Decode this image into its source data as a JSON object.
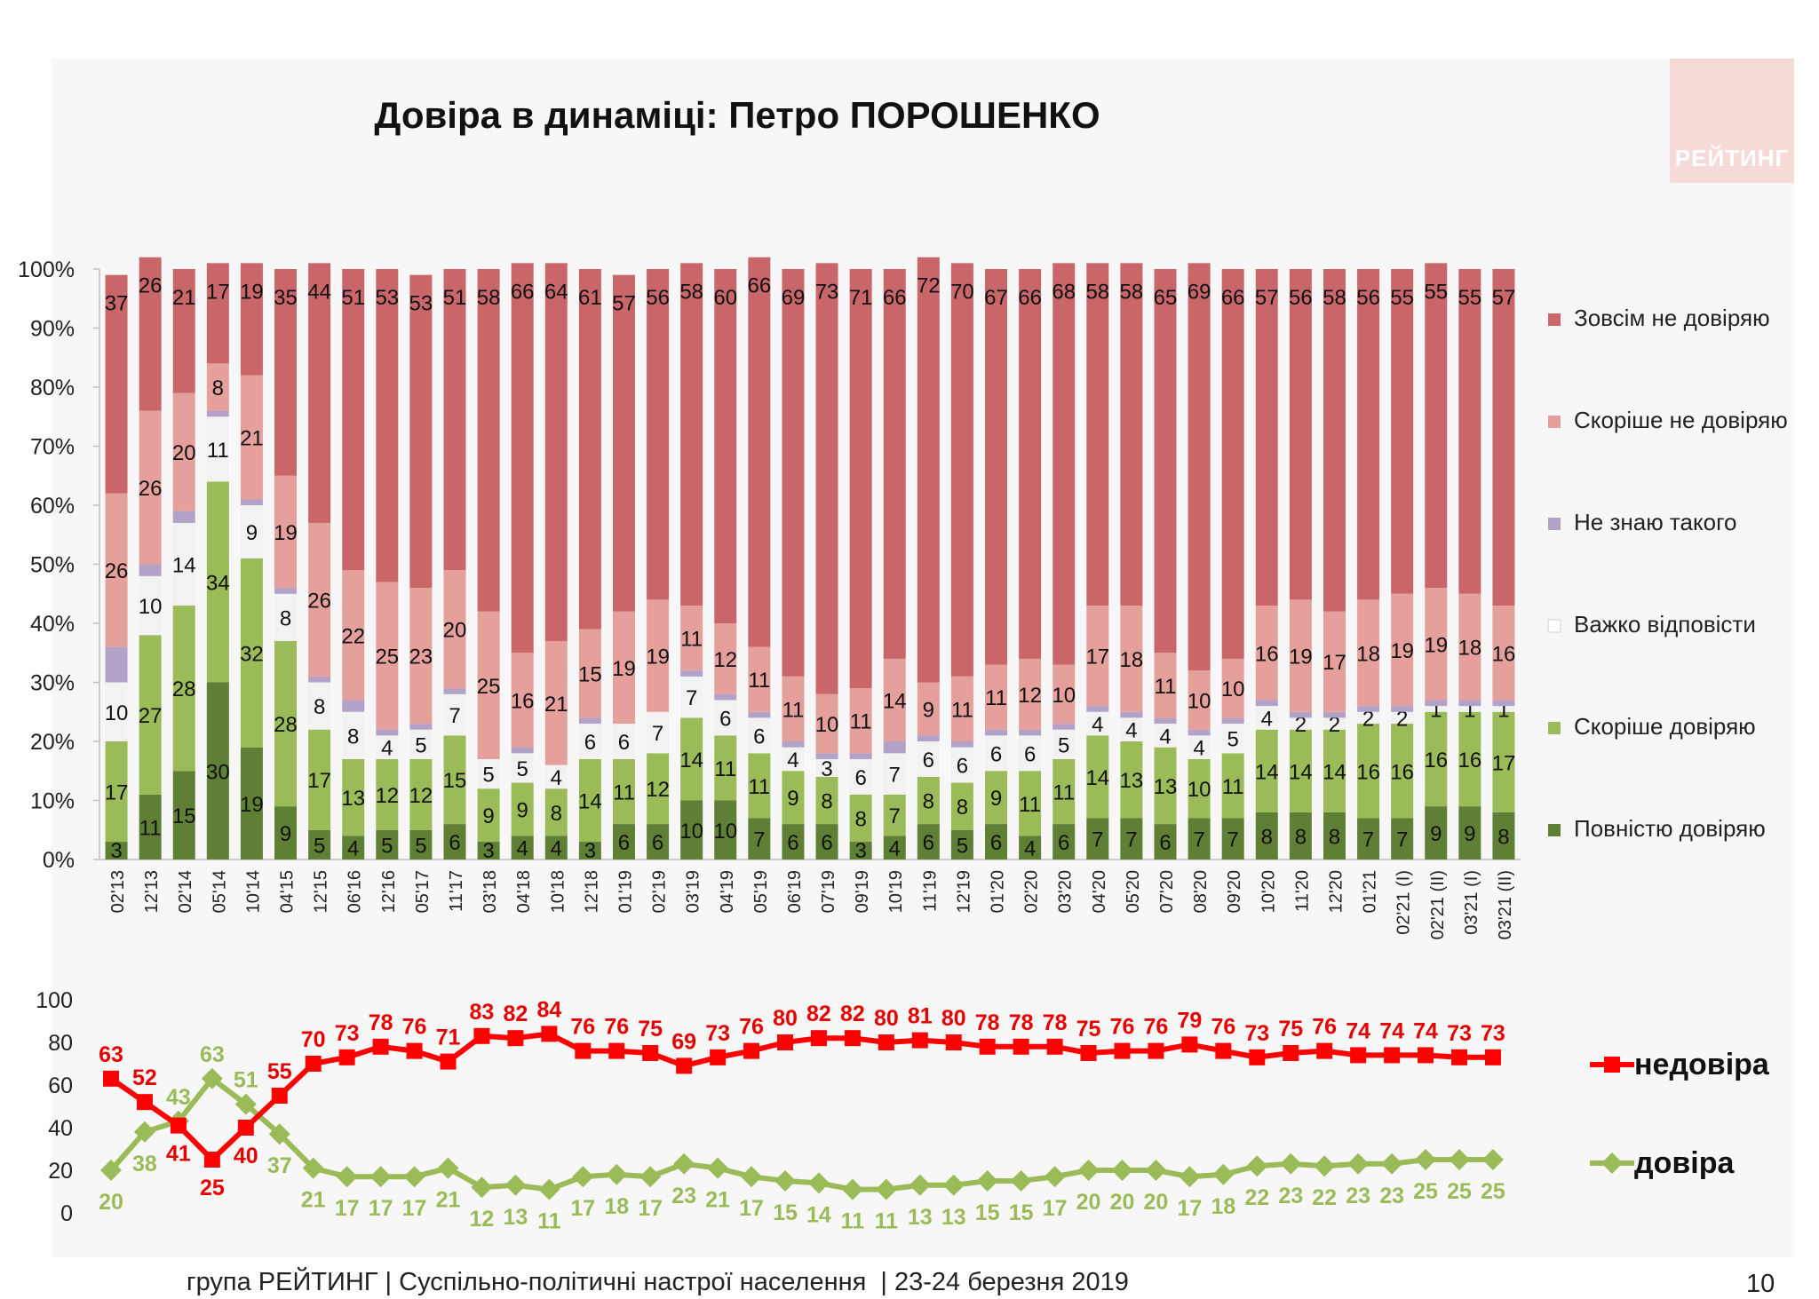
{
  "slide": {
    "title": "Довіра в динаміці: Петро ПОРОШЕНКО",
    "logo_text": "РЕЙТИНГ",
    "footer": "група РЕЙТИНГ | Суспільно-політичні настрої населення  | 23-24 березня 2019",
    "page_number": "10"
  },
  "chart_data": [
    {
      "type": "bar",
      "stacked": true,
      "percent": true,
      "y_ticks": [
        "0%",
        "10%",
        "20%",
        "30%",
        "40%",
        "50%",
        "60%",
        "70%",
        "80%",
        "90%",
        "100%"
      ],
      "ylim": [
        0,
        100
      ],
      "categories": [
        "02'13",
        "12'13",
        "02'14",
        "05'14",
        "10'14",
        "04'15",
        "12'15",
        "06'16",
        "12'16",
        "05'17",
        "11'17",
        "03'18",
        "04'18",
        "10'18",
        "12'18",
        "01'19",
        "02'19",
        "03'19",
        "04'19",
        "05'19",
        "06'19",
        "07'19",
        "09'19",
        "10'19",
        "11'19",
        "12'19",
        "01'20",
        "02'20",
        "03'20",
        "04'20",
        "05'20",
        "07'20",
        "08'20",
        "09'20",
        "10'20",
        "11'20",
        "12'20",
        "01'21",
        "02'21 (I)",
        "02'21 (II)",
        "03'21 (I)",
        "03'21 (II)"
      ],
      "series": [
        {
          "name": "Повністю довіряю",
          "color": "#5e7f34",
          "values": [
            3,
            11,
            15,
            30,
            19,
            9,
            5,
            4,
            5,
            5,
            6,
            3,
            4,
            4,
            3,
            6,
            6,
            10,
            10,
            7,
            6,
            6,
            3,
            4,
            6,
            5,
            6,
            4,
            6,
            7,
            7,
            6,
            7,
            7,
            8,
            8,
            8,
            7,
            7,
            9,
            9,
            8
          ]
        },
        {
          "name": "Скоріше довіряю",
          "color": "#9bbb59",
          "values": [
            17,
            27,
            28,
            34,
            32,
            28,
            17,
            13,
            12,
            12,
            15,
            9,
            9,
            8,
            14,
            11,
            12,
            14,
            11,
            11,
            9,
            8,
            8,
            7,
            8,
            8,
            9,
            11,
            11,
            14,
            13,
            13,
            10,
            11,
            14,
            14,
            14,
            16,
            16,
            16,
            16,
            17
          ]
        },
        {
          "name": "Важко відповісти",
          "color": "#f2f2f2",
          "values": [
            10,
            10,
            14,
            11,
            9,
            8,
            8,
            8,
            4,
            5,
            7,
            5,
            5,
            4,
            6,
            6,
            7,
            7,
            6,
            6,
            4,
            3,
            6,
            7,
            6,
            6,
            6,
            6,
            5,
            4,
            4,
            4,
            4,
            5,
            4,
            2,
            2,
            2,
            2,
            1,
            1,
            1
          ]
        },
        {
          "name": "Не знаю такого",
          "color": "#b3a2c7",
          "values": [
            6,
            2,
            2,
            1,
            1,
            1,
            1,
            2,
            1,
            1,
            1,
            0,
            1,
            0,
            1,
            0,
            0,
            1,
            1,
            1,
            1,
            1,
            1,
            2,
            1,
            1,
            1,
            1,
            1,
            1,
            1,
            1,
            1,
            1,
            1,
            1,
            1,
            1,
            1,
            1,
            1,
            1
          ]
        },
        {
          "name": "Скоріше не довіряю",
          "color": "#e6a09c",
          "values": [
            26,
            26,
            20,
            8,
            21,
            19,
            26,
            22,
            25,
            23,
            20,
            25,
            16,
            21,
            15,
            19,
            19,
            11,
            12,
            11,
            11,
            10,
            11,
            14,
            9,
            11,
            11,
            12,
            10,
            17,
            18,
            11,
            10,
            10,
            16,
            19,
            17,
            18,
            19,
            19,
            18,
            16
          ]
        },
        {
          "name": "Зовсім не довіряю",
          "color": "#c9666a",
          "values": [
            37,
            26,
            21,
            17,
            19,
            35,
            44,
            51,
            53,
            53,
            51,
            58,
            66,
            64,
            61,
            57,
            56,
            58,
            60,
            66,
            69,
            73,
            71,
            66,
            72,
            70,
            67,
            66,
            68,
            58,
            58,
            65,
            69,
            66,
            57,
            56,
            58,
            56,
            55,
            55,
            55,
            57
          ]
        }
      ],
      "legend_position": "right"
    },
    {
      "type": "line",
      "y_ticks": [
        "0",
        "20",
        "40",
        "60",
        "80",
        "100"
      ],
      "ylim": [
        0,
        100
      ],
      "series": [
        {
          "name": "недовіра",
          "color": "#ff0000",
          "marker": "square",
          "values": [
            63,
            52,
            41,
            25,
            40,
            55,
            70,
            73,
            78,
            76,
            71,
            83,
            82,
            84,
            76,
            76,
            75,
            69,
            73,
            76,
            80,
            82,
            82,
            80,
            81,
            80,
            78,
            78,
            78,
            75,
            76,
            76,
            79,
            76,
            73,
            75,
            76,
            74,
            74,
            74,
            73,
            73
          ]
        },
        {
          "name": "довіра",
          "color": "#9bbb59",
          "marker": "diamond",
          "values": [
            20,
            38,
            43,
            63,
            51,
            37,
            21,
            17,
            17,
            17,
            21,
            12,
            13,
            11,
            17,
            18,
            17,
            23,
            21,
            17,
            15,
            14,
            11,
            11,
            13,
            13,
            15,
            15,
            17,
            20,
            20,
            20,
            17,
            18,
            22,
            23,
            22,
            23,
            23,
            25,
            25,
            25
          ]
        }
      ],
      "legend_position": "right"
    }
  ]
}
